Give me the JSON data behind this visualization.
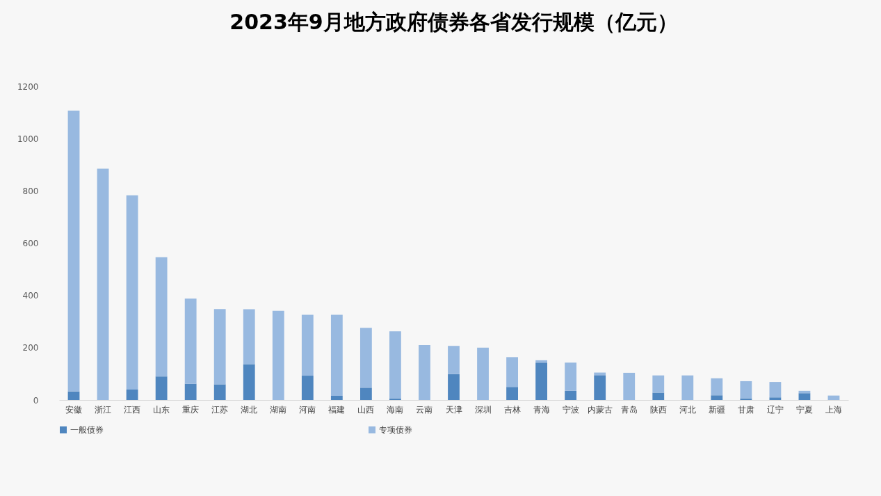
{
  "chart_data": {
    "type": "bar",
    "title": "2023年9月地方政府债券各省发行规模（亿元）",
    "stacked": true,
    "legend": "bottom",
    "categories": [
      "安徽",
      "浙江",
      "江西",
      "山东",
      "重庆",
      "江苏",
      "湖北",
      "湖南",
      "河南",
      "福建",
      "山西",
      "海南",
      "云南",
      "天津",
      "深圳",
      "吉林",
      "青海",
      "宁波",
      "内蒙古",
      "青岛",
      "陕西",
      "河北",
      "新疆",
      "甘肃",
      "辽宁",
      "宁夏",
      "上海"
    ],
    "series": [
      {
        "name": "一般债券",
        "color": "#4f86bf",
        "values": [
          33,
          0,
          40,
          90,
          62,
          60,
          137,
          0,
          93,
          16,
          47,
          6,
          0,
          99,
          0,
          50,
          143,
          35,
          95,
          0,
          28,
          0,
          18,
          6,
          10,
          26,
          0
        ]
      },
      {
        "name": "专项债券",
        "color": "#98b9e0",
        "values": [
          1074,
          885,
          743,
          456,
          326,
          288,
          210,
          341,
          233,
          310,
          229,
          257,
          210,
          108,
          200,
          114,
          9,
          108,
          10,
          104,
          66,
          94,
          65,
          66,
          59,
          9,
          17
        ]
      }
    ],
    "ylim": [
      0,
      1200
    ],
    "yticks": [
      0,
      200,
      400,
      600,
      800,
      1000,
      1200
    ]
  }
}
